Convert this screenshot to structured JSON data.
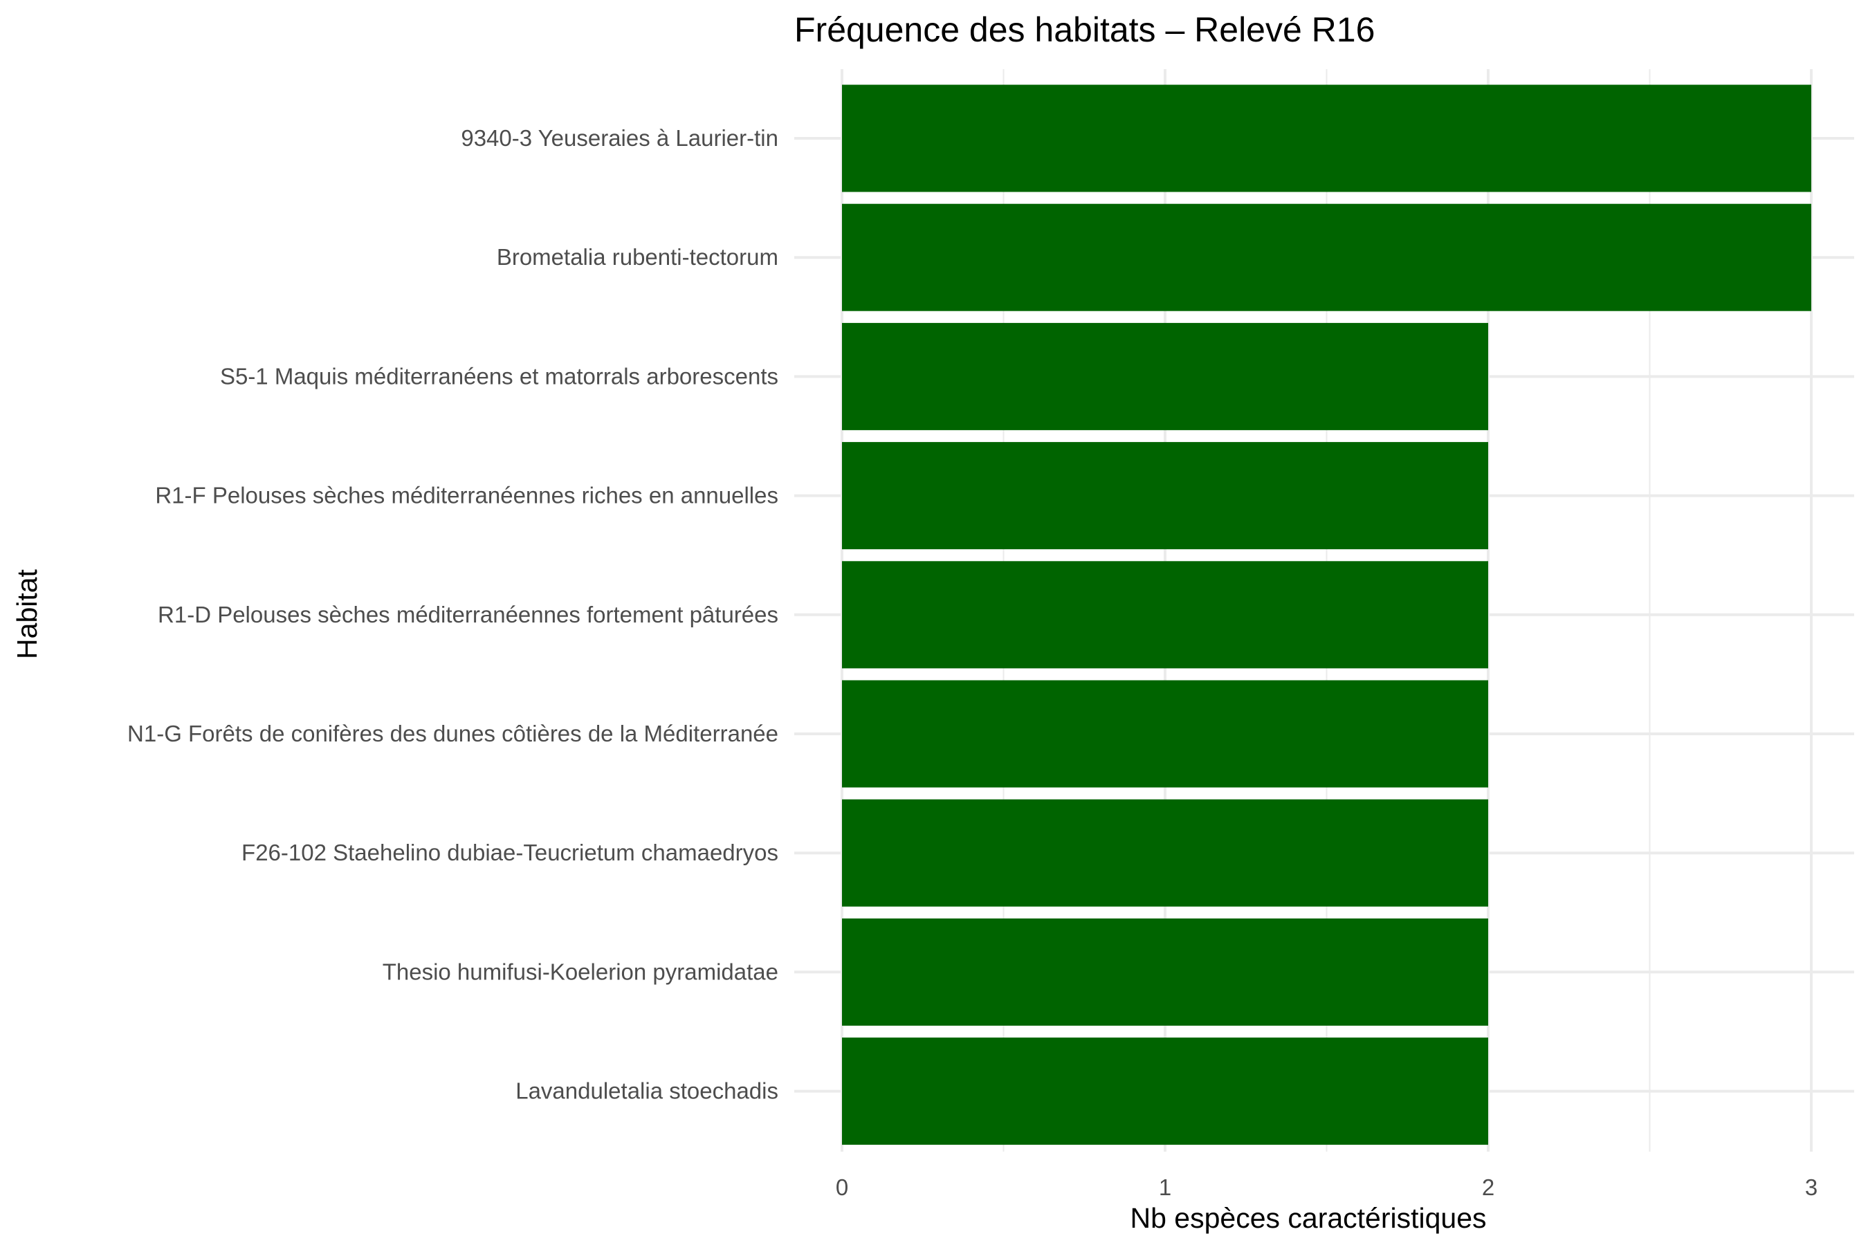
{
  "chart_data": {
    "type": "bar",
    "orientation": "horizontal",
    "title": "Fréquence des habitats – Relevé R16",
    "xlabel": "Nb espèces caractéristiques",
    "ylabel": "Habitat",
    "categories": [
      "9340-3 Yeuseraies à Laurier-tin",
      "Brometalia rubenti-tectorum",
      "S5-1 Maquis méditerranéens et matorrals arborescents",
      "R1-F Pelouses sèches méditerranéennes riches en annuelles",
      "R1-D Pelouses sèches méditerranéennes fortement pâturées",
      "N1-G Forêts de conifères des dunes côtières de la Méditerranée",
      "F26-102 Staehelino dubiae-Teucrietum chamaedryos",
      "Thesio humifusi-Koelerion pyramidatae",
      "Lavanduletalia stoechadis"
    ],
    "values": [
      3,
      3,
      2,
      2,
      2,
      2,
      2,
      2,
      2
    ],
    "xlim": [
      0,
      3
    ],
    "xticks": [
      "0",
      "1",
      "2",
      "3"
    ],
    "grid": true,
    "legend": "none",
    "bar_color": "#006400",
    "grid_color": "#ebebeb"
  }
}
